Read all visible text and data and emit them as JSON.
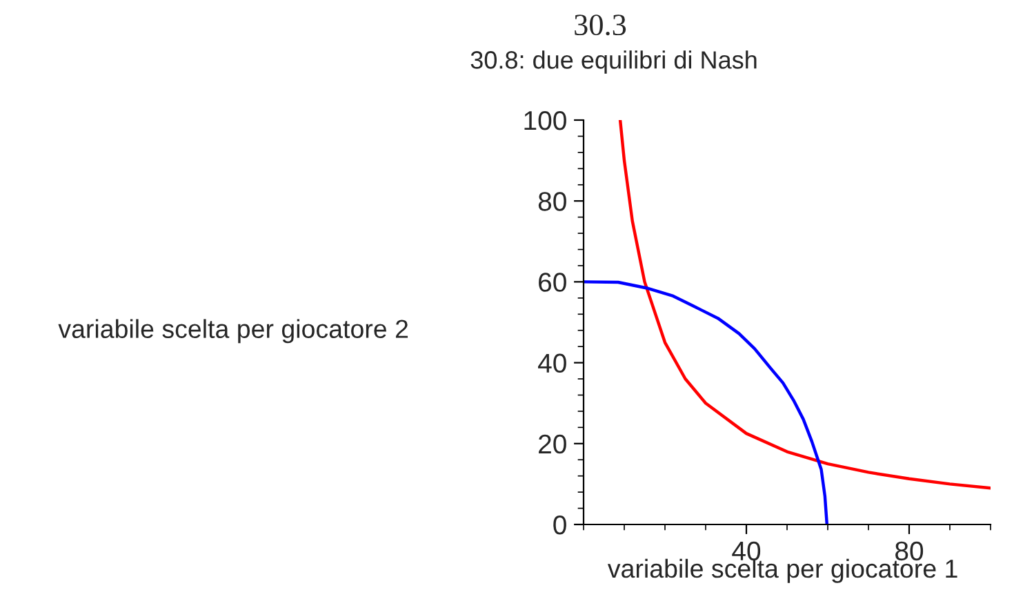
{
  "chart_data": {
    "type": "line",
    "title": "30.3",
    "subtitle": "30.8: due equilibri di Nash",
    "xlabel": "variabile scelta per giocatore 1",
    "ylabel": "variabile scelta per giocatore 2",
    "series": [
      {
        "color": "#ff0000",
        "x": [
          9,
          10,
          12,
          15,
          20,
          25,
          30,
          40,
          50,
          60,
          70,
          80,
          90,
          100
        ],
        "values": [
          100,
          90,
          75,
          60,
          45,
          36,
          30,
          22.5,
          18,
          15,
          12.9,
          11.3,
          10,
          9
        ]
      },
      {
        "color": "#0000ff",
        "x": [
          0,
          8.5,
          15.8,
          22,
          27,
          33,
          38.2,
          42,
          46,
          49,
          51.6,
          54,
          56.1,
          58.4,
          59.3,
          59.8
        ],
        "values": [
          60,
          59.9,
          58.4,
          56.5,
          54,
          51,
          47.2,
          43.5,
          38.6,
          35,
          30.7,
          26,
          20.5,
          13.6,
          7,
          0
        ]
      }
    ],
    "xlim": [
      0,
      100
    ],
    "ylim": [
      0,
      100
    ],
    "xticks": [
      40,
      80
    ],
    "yticks": [
      0,
      20,
      40,
      60,
      80,
      100
    ],
    "grid": false,
    "legend": false,
    "marker": "none",
    "line_style": "solid"
  }
}
